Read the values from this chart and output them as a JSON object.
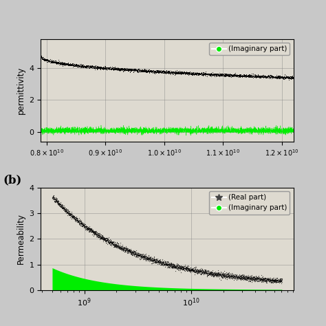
{
  "panel_a": {
    "ylabel": "permittivity",
    "xlim": [
      7900000000.0,
      12200000000.0
    ],
    "ylim": [
      -0.6,
      5.8
    ],
    "yticks": [
      0,
      2,
      4
    ],
    "real_color": "#000000",
    "imag_color": "#00ee00",
    "legend_entries": [
      "(Imaginary part)"
    ],
    "legend_colors": [
      "#00ee00"
    ],
    "background_color": "#dedad0"
  },
  "panel_b": {
    "ylabel": "Permeability",
    "ylim": [
      0,
      4
    ],
    "yticks": [
      0,
      1,
      2,
      3,
      4
    ],
    "real_color": "#000000",
    "imag_color": "#00ee00",
    "legend_entries": [
      "(Real part)",
      "(Imaginary part)"
    ],
    "legend_colors": [
      "#444444",
      "#00ee00"
    ],
    "background_color": "#dedad0",
    "label_b": "(b)"
  },
  "fig_background": "#c8c8c8"
}
